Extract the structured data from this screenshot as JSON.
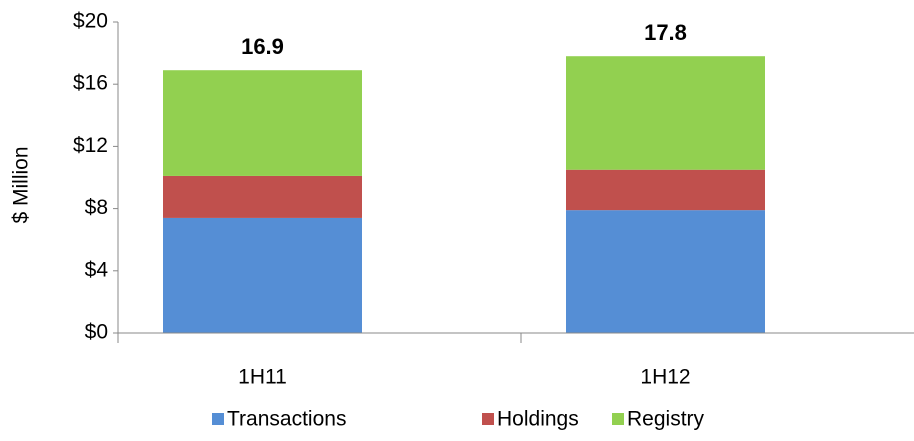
{
  "chart_data": {
    "type": "stacked_bar",
    "y_label": "$ Million",
    "categories": [
      "1H11",
      "1H12"
    ],
    "series": [
      {
        "name": "Transactions",
        "color": "#558ed5",
        "values": [
          7.4,
          7.9
        ]
      },
      {
        "name": "Holdings",
        "color": "#c0504d",
        "values": [
          2.7,
          2.6
        ]
      },
      {
        "name": "Registry",
        "color": "#92d050",
        "values": [
          6.8,
          7.3
        ]
      }
    ],
    "totals": [
      16.9,
      17.8
    ],
    "ylim": [
      0,
      20
    ],
    "yticks": [
      {
        "value": 0,
        "label": "$0"
      },
      {
        "value": 4,
        "label": "$4"
      },
      {
        "value": 8,
        "label": "$8"
      },
      {
        "value": 12,
        "label": "$12"
      },
      {
        "value": 16,
        "label": "$16"
      },
      {
        "value": 20,
        "label": "$20"
      }
    ],
    "grid": false,
    "legend": "bottom"
  }
}
